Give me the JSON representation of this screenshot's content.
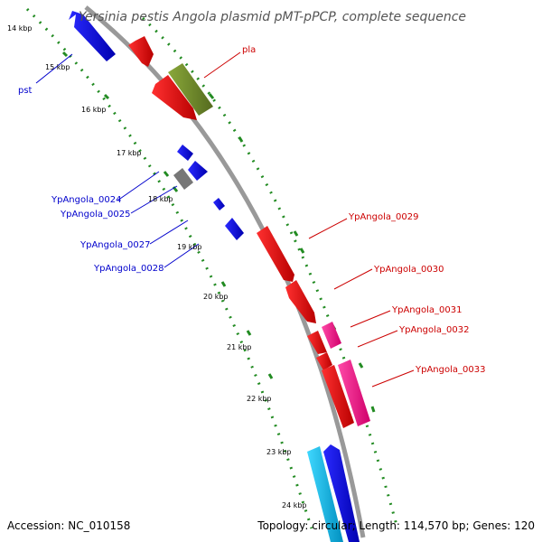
{
  "title": "Yersinia pestis Angola plasmid pMT-pPCP, complete sequence",
  "accession": "Accession: NC_010158",
  "topology": "Topology: circular; Length: 114,570 bp; Genes: 120",
  "kbp_ticks": [
    "14 kbp",
    "15 kbp",
    "16 kbp",
    "17 kbp",
    "18 kbp",
    "19 kbp",
    "20 kbp",
    "21 kbp",
    "22 kbp",
    "23 kbp",
    "24 kbp"
  ],
  "genes_blue": [
    "pst",
    "YpAngola_0024",
    "YpAngola_0025",
    "YpAngola_0027",
    "YpAngola_0028"
  ],
  "genes_red": [
    "pla",
    "YpAngola_0029",
    "YpAngola_0030",
    "YpAngola_0031",
    "YpAngola_0032",
    "YpAngola_0033"
  ],
  "colors": {
    "forward_cds": "#ff0000",
    "reverse_cds": "#0000ff",
    "olive_feature": "#6b8e23",
    "magenta_feature": "#ff1493",
    "cyan_feature": "#00bfff",
    "grey_feature": "#777777",
    "backbone": "#999999",
    "gc_dots": "#228b22",
    "label_blue": "#0000cc",
    "label_red": "#cc0000"
  }
}
